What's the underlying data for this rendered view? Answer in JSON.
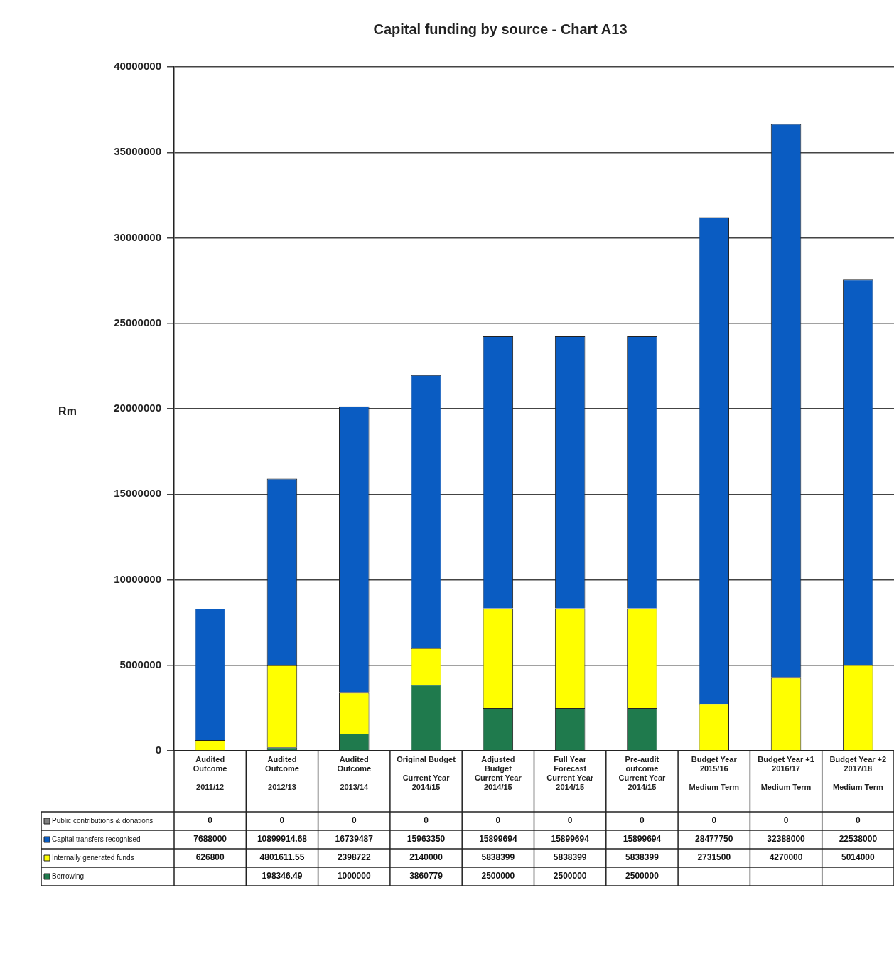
{
  "chart_data": {
    "type": "bar",
    "stacked": true,
    "title": "Capital funding by source - Chart A13",
    "ylabel": "Rm",
    "categories": [
      "Audited\nOutcome\n\n2011/12",
      "Audited\nOutcome\n\n2012/13",
      "Audited\nOutcome\n\n2013/14",
      "Original Budget\n\nCurrent Year\n2014/15",
      "Adjusted\nBudget\nCurrent Year\n2014/15",
      "Full Year\nForecast\nCurrent Year\n2014/15",
      "Pre-audit\noutcome\nCurrent Year\n2014/15",
      "Budget Year\n2015/16\n\nMedium Term",
      "Budget Year +1\n2016/17\n\nMedium Term",
      "Budget Year +2\n2017/18\n\nMedium Term"
    ],
    "series": [
      {
        "name": "Borrowing",
        "color": "#1f7a4d",
        "values": [
          null,
          198346.49,
          1000000,
          3860779,
          2500000,
          2500000,
          2500000,
          null,
          null,
          null
        ]
      },
      {
        "name": "Internally generated funds",
        "color": "#ffff00",
        "values": [
          626800,
          4801611.55,
          2398722,
          2140000,
          5838399,
          5838399,
          5838399,
          2731500,
          4270000,
          5014000
        ]
      },
      {
        "name": "Capital transfers recognised",
        "color": "#0a5cc2",
        "values": [
          7688000,
          10899914.68,
          16739487,
          15963350,
          15899694,
          15899694,
          15899694,
          28477750,
          32388000,
          22538000
        ]
      },
      {
        "name": "Public contributions & donations",
        "color": "#808080",
        "values": [
          0,
          0,
          0,
          0,
          0,
          0,
          0,
          0,
          0,
          0
        ]
      }
    ],
    "ylim": [
      0,
      40000000
    ],
    "yticks": [
      0,
      5000000,
      10000000,
      15000000,
      20000000,
      25000000,
      30000000,
      35000000,
      40000000
    ],
    "grid": "y",
    "legend": "bottom left",
    "data_labels": true
  }
}
